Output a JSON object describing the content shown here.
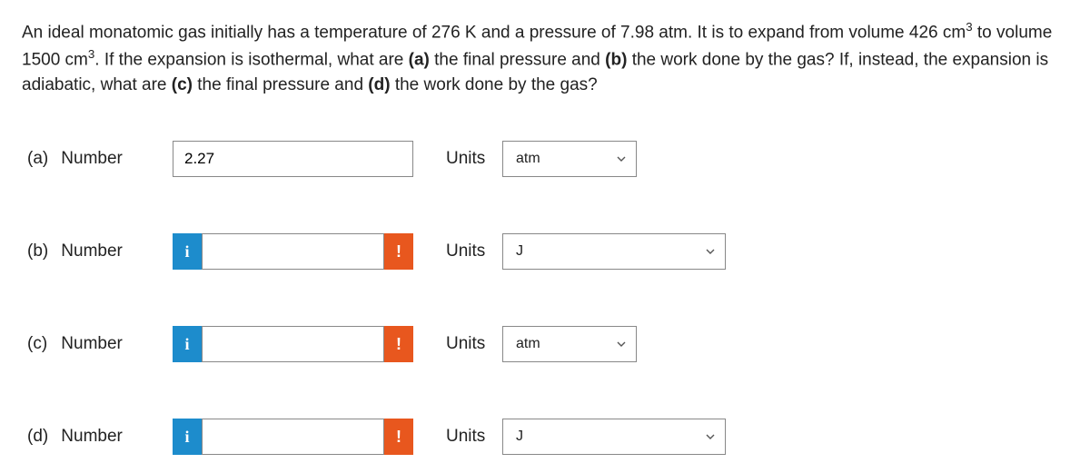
{
  "question_html": "An ideal monatomic gas initially has a temperature of 276 K and a pressure of 7.98 atm. It is to expand from volume 426 cm<sup>3</sup> to volume 1500 cm<sup>3</sup>. If the expansion is isothermal, what are <b>(a)</b> the final pressure and <b>(b)</b> the work done by the gas? If, instead, the expansion is adiabatic, what are <b>(c)</b> the final pressure and <b>(d)</b> the work done by the gas?",
  "labels": {
    "number": "Number",
    "units": "Units"
  },
  "colors": {
    "info_bg": "#1d8ccc",
    "warn_bg": "#e8571e",
    "border": "#888888",
    "text": "#222222"
  },
  "parts": [
    {
      "id": "a",
      "letter": "(a)",
      "value": "2.27",
      "has_info": false,
      "has_warn": false,
      "unit": "atm",
      "unit_size": "small"
    },
    {
      "id": "b",
      "letter": "(b)",
      "value": "",
      "has_info": true,
      "has_warn": true,
      "unit": "J",
      "unit_size": "large"
    },
    {
      "id": "c",
      "letter": "(c)",
      "value": "",
      "has_info": true,
      "has_warn": true,
      "unit": "atm",
      "unit_size": "small"
    },
    {
      "id": "d",
      "letter": "(d)",
      "value": "",
      "has_info": true,
      "has_warn": true,
      "unit": "J",
      "unit_size": "large"
    }
  ]
}
